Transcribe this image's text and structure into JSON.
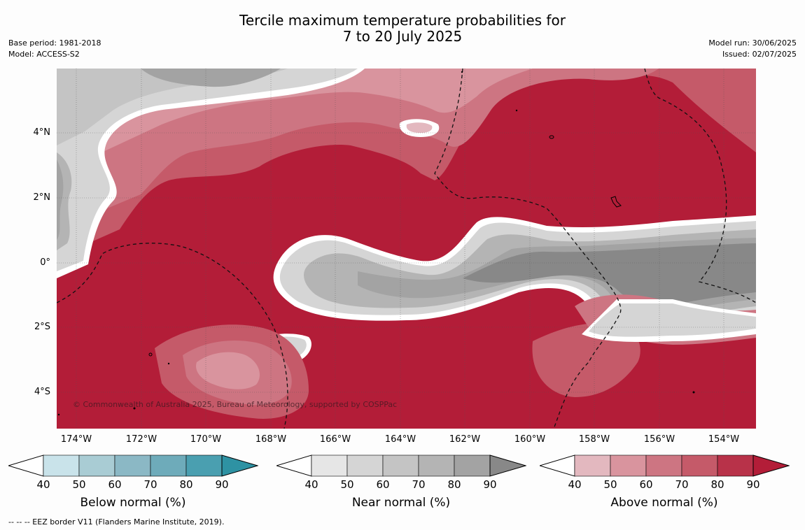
{
  "title": {
    "line1": "Tercile maximum temperature probabilities for",
    "line2": "7 to 20 July 2025"
  },
  "meta_left": {
    "base_period": "Base period: 1981-2018",
    "model": "Model: ACCESS-S2"
  },
  "meta_right": {
    "model_run": "Model run: 30/06/2025",
    "issued": "Issued: 02/07/2025"
  },
  "map": {
    "latitude_labels": [
      "4°N",
      "2°N",
      "0°",
      "2°S",
      "4°S"
    ],
    "longitude_labels": [
      "174°W",
      "172°W",
      "170°W",
      "168°W",
      "166°W",
      "164°W",
      "162°W",
      "160°W",
      "158°W",
      "156°W",
      "154°W"
    ],
    "copyright": "© Commonwealth of Australia 2025, Bureau of Meteorology, supported by COSPPac",
    "background_color": "#b31d38"
  },
  "colorbars": [
    {
      "name": "Below normal (%)",
      "ticks": [
        "40",
        "50",
        "60",
        "70",
        "80",
        "90"
      ],
      "colors": [
        "#ffffff",
        "#c9e3ea",
        "#a9ccd4",
        "#8bb8c5",
        "#6eabba",
        "#4a9fb0",
        "#2e92a3"
      ]
    },
    {
      "name": "Near normal (%)",
      "ticks": [
        "40",
        "50",
        "60",
        "70",
        "80",
        "90"
      ],
      "colors": [
        "#ffffff",
        "#e6e6e6",
        "#d5d5d5",
        "#c4c4c4",
        "#b4b4b4",
        "#a3a3a3",
        "#888888"
      ]
    },
    {
      "name": "Above normal (%)",
      "ticks": [
        "40",
        "50",
        "60",
        "70",
        "80",
        "90"
      ],
      "colors": [
        "#ffffff",
        "#e3b8bf",
        "#d9949e",
        "#cd7582",
        "#c55a69",
        "#b83249",
        "#b31d38"
      ]
    }
  ],
  "footnote": "--  --  -- EEZ border V11 (Flanders Marine Institute, 2019)."
}
